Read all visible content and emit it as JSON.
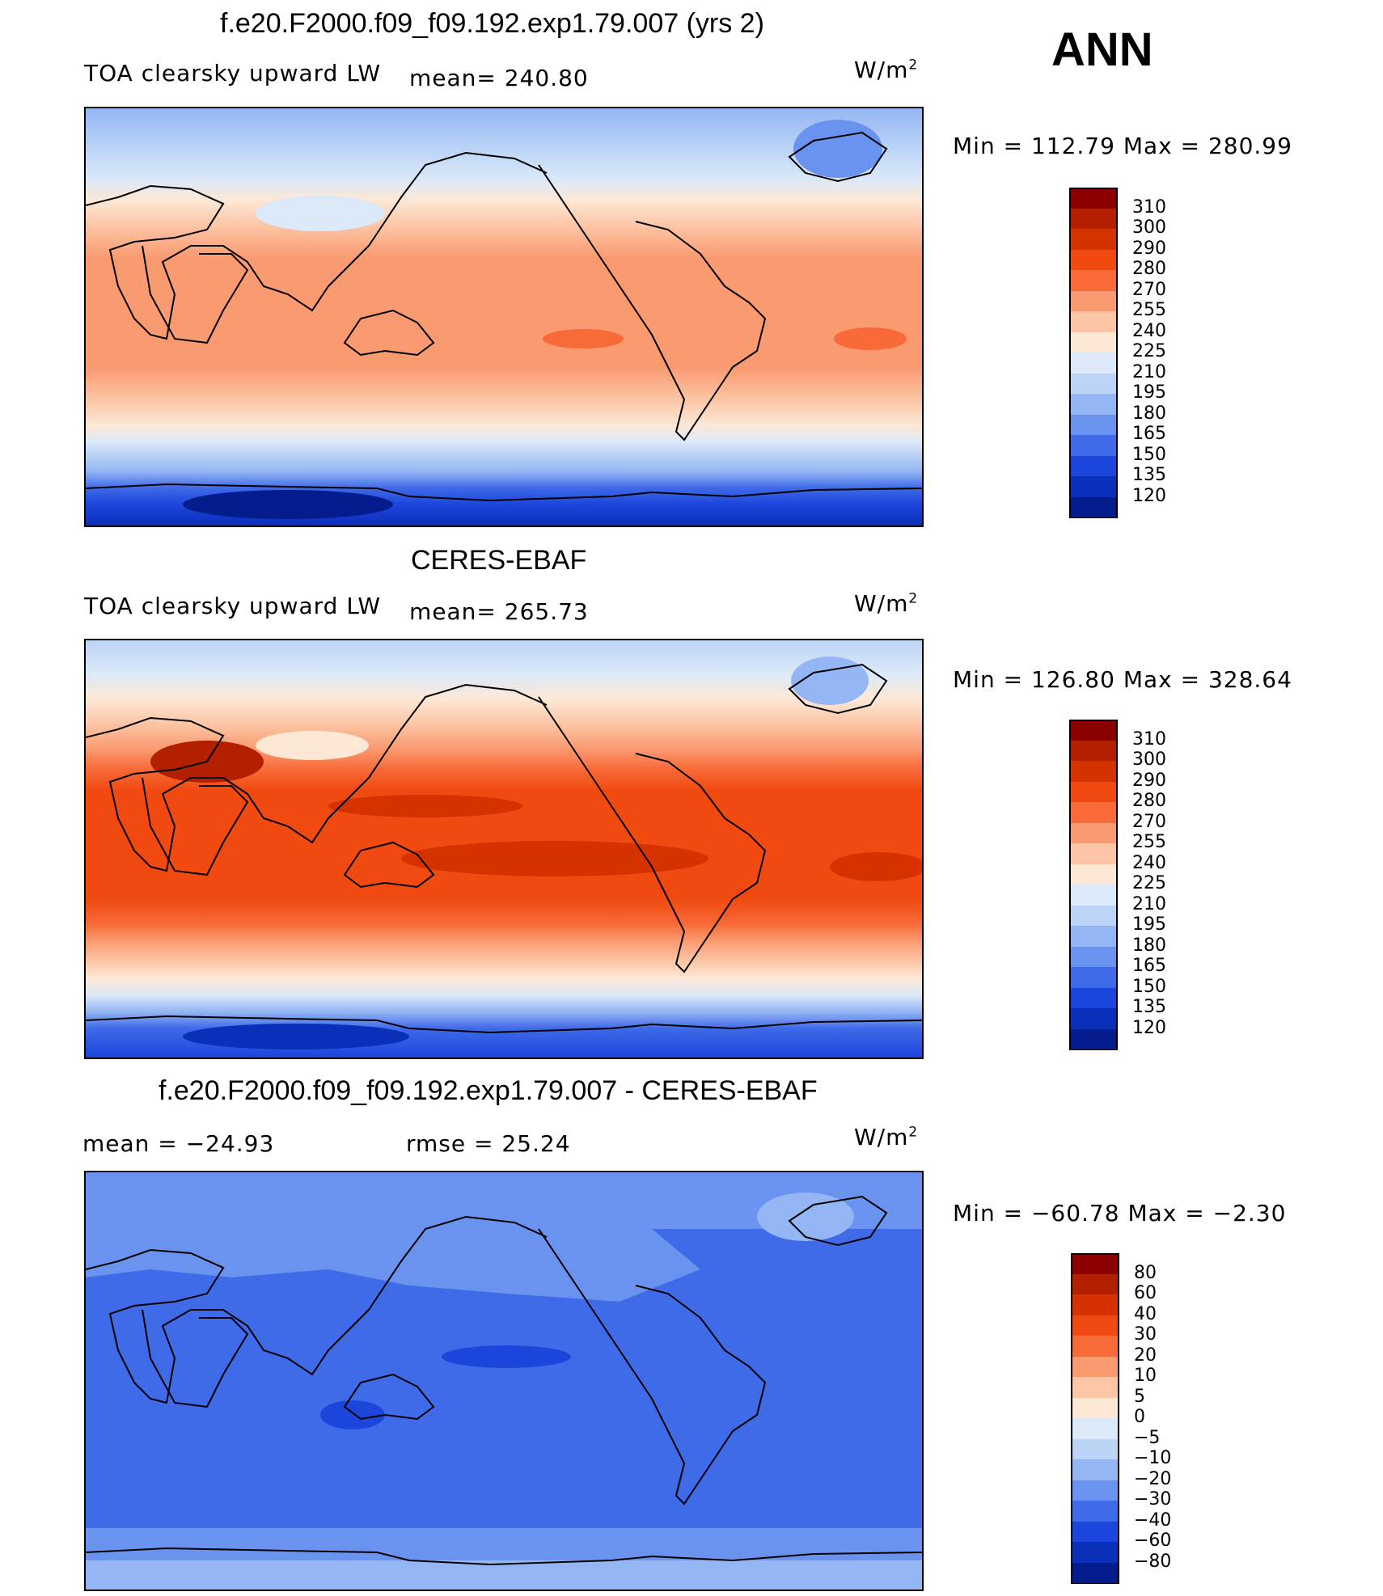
{
  "season": "ANN",
  "chart_data": [
    {
      "type": "heatmap",
      "title": "f.e20.F2000.f09_f09.192.exp1.79.007 (yrs 2)",
      "left_label": "TOA clearsky upward LW",
      "stat_label": "mean= 240.80",
      "units": "W/m",
      "units_sup": "2",
      "min_max": "Min = 112.79 Max = 280.99",
      "colorbar": {
        "ticks": [
          "310",
          "300",
          "290",
          "280",
          "270",
          "255",
          "240",
          "225",
          "210",
          "195",
          "180",
          "165",
          "150",
          "135",
          "120"
        ],
        "colors": [
          "#8b0000",
          "#b32000",
          "#d63200",
          "#f04a10",
          "#f86a38",
          "#fa9a70",
          "#fcc6a6",
          "#fde8d6",
          "#dbe9f8",
          "#bcd4f6",
          "#94b6f4",
          "#6a92ef",
          "#3f6ae8",
          "#1c45dc",
          "#0a2fb8",
          "#051c8c"
        ]
      },
      "field": "model",
      "description_stats": {
        "mean": 240.8,
        "min": 112.79,
        "max": 280.99
      }
    },
    {
      "type": "heatmap",
      "title": "CERES-EBAF",
      "left_label": "TOA clearsky upward LW",
      "stat_label": "mean= 265.73",
      "units": "W/m",
      "units_sup": "2",
      "min_max": "Min = 126.80 Max = 328.64",
      "colorbar": {
        "ticks": [
          "310",
          "300",
          "290",
          "280",
          "270",
          "255",
          "240",
          "225",
          "210",
          "195",
          "180",
          "165",
          "150",
          "135",
          "120"
        ],
        "colors": [
          "#8b0000",
          "#b32000",
          "#d63200",
          "#f04a10",
          "#f86a38",
          "#fa9a70",
          "#fcc6a6",
          "#fde8d6",
          "#dbe9f8",
          "#bcd4f6",
          "#94b6f4",
          "#6a92ef",
          "#3f6ae8",
          "#1c45dc",
          "#0a2fb8",
          "#051c8c"
        ]
      },
      "field": "obs",
      "description_stats": {
        "mean": 265.73,
        "min": 126.8,
        "max": 328.64
      }
    },
    {
      "type": "heatmap",
      "title": "f.e20.F2000.f09_f09.192.exp1.79.007 - CERES-EBAF",
      "left_label": "mean = −24.93",
      "stat_label": "rmse = 25.24",
      "units": "W/m",
      "units_sup": "2",
      "min_max": "Min = −60.78 Max = −2.30",
      "colorbar": {
        "ticks": [
          "80",
          "60",
          "40",
          "30",
          "20",
          "10",
          "5",
          "0",
          "−5",
          "−10",
          "−20",
          "−30",
          "−40",
          "−60",
          "−80"
        ],
        "colors": [
          "#8b0000",
          "#b32000",
          "#d63200",
          "#f04a10",
          "#f86a38",
          "#fa9a70",
          "#fcc6a6",
          "#fde8d6",
          "#dbe9f8",
          "#bcd4f6",
          "#94b6f4",
          "#6a92ef",
          "#3f6ae8",
          "#1c45dc",
          "#0a2fb8",
          "#051c8c"
        ]
      },
      "field": "diff",
      "description_stats": {
        "mean": -24.93,
        "rmse": 25.24,
        "min": -60.78,
        "max": -2.3
      }
    }
  ]
}
